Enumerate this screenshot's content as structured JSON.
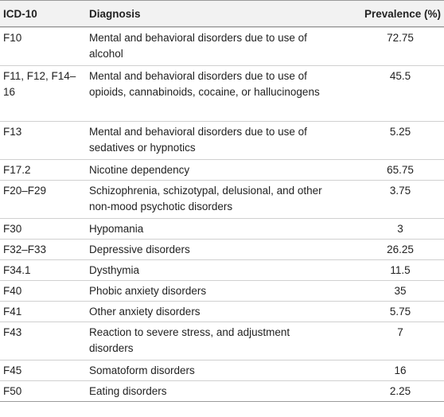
{
  "table": {
    "headers": {
      "code": "ICD-10",
      "diagnosis": "Diagnosis",
      "prevalence": "Prevalence (%)"
    },
    "rows": [
      {
        "code": "F10",
        "diagnosis": "Mental and behavioral disorders due to use of alcohol",
        "prevalence": "72.75"
      },
      {
        "code": "F11, F12, F14–16",
        "diagnosis": "Mental and behavioral disorders due to use of opioids, cannabinoids, cocaine, or hallucinogens",
        "prevalence": "45.5"
      },
      {
        "code": "F13",
        "diagnosis": "Mental and behavioral disorders due to use of sedatives or hypnotics",
        "prevalence": "5.25"
      },
      {
        "code": "F17.2",
        "diagnosis": "Nicotine dependency",
        "prevalence": "65.75"
      },
      {
        "code": "F20–F29",
        "diagnosis": "Schizophrenia, schizotypal, delusional, and other non-mood psychotic disorders",
        "prevalence": "3.75"
      },
      {
        "code": "F30",
        "diagnosis": "Hypomania",
        "prevalence": "3"
      },
      {
        "code": "F32–F33",
        "diagnosis": "Depressive disorders",
        "prevalence": "26.25"
      },
      {
        "code": "F34.1",
        "diagnosis": "Dysthymia",
        "prevalence": "11.5"
      },
      {
        "code": "F40",
        "diagnosis": "Phobic anxiety disorders",
        "prevalence": "35"
      },
      {
        "code": "F41",
        "diagnosis": "Other anxiety disorders",
        "prevalence": "5.75"
      },
      {
        "code": "F43",
        "diagnosis": "Reaction to severe stress, and adjustment disorders",
        "prevalence": "7"
      },
      {
        "code": "F45",
        "diagnosis": "Somatoform disorders",
        "prevalence": "16"
      },
      {
        "code": "F50",
        "diagnosis": "Eating disorders",
        "prevalence": "2.25"
      }
    ]
  }
}
